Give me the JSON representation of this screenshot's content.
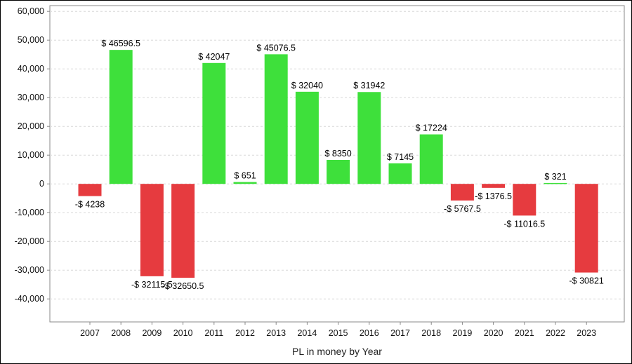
{
  "chart_data": {
    "type": "bar",
    "title": "",
    "xlabel": "PL in money by Year",
    "ylabel": "",
    "ylim": [
      -48000,
      62000
    ],
    "yticks": [
      -40000,
      -30000,
      -20000,
      -10000,
      0,
      10000,
      20000,
      30000,
      40000,
      50000,
      60000
    ],
    "ytick_labels": [
      "-40,000",
      "-30,000",
      "-20,000",
      "-10,000",
      "0",
      "10,000",
      "20,000",
      "30,000",
      "40,000",
      "50,000",
      "60,000"
    ],
    "categories": [
      "2007",
      "2008",
      "2009",
      "2010",
      "2011",
      "2012",
      "2013",
      "2014",
      "2015",
      "2016",
      "2017",
      "2018",
      "2019",
      "2020",
      "2021",
      "2022",
      "2023"
    ],
    "values": [
      -4238,
      46596.5,
      -32115.5,
      -32650.5,
      42047,
      651,
      45076.5,
      32040,
      8350,
      31942,
      7145,
      17224,
      -5767.5,
      -1376.5,
      -11016.5,
      321,
      -30821
    ],
    "data_labels": [
      "-$ 4238",
      "$ 46596.5",
      "-$ 32115.5",
      "-$ 32650.5",
      "$ 42047",
      "$ 651",
      "$ 45076.5",
      "$ 32040",
      "$ 8350",
      "$ 31942",
      "$ 7145",
      "$ 17224",
      "-$ 5767.5",
      "-$ 1376.5",
      "-$ 11016.5",
      "$ 321",
      "-$ 30821"
    ],
    "grid": true,
    "legend": "none",
    "colors": {
      "positive": "#3ee03b",
      "negative": "#e63b3f",
      "grid": "#d8d8d8",
      "axis": "#888888"
    }
  }
}
